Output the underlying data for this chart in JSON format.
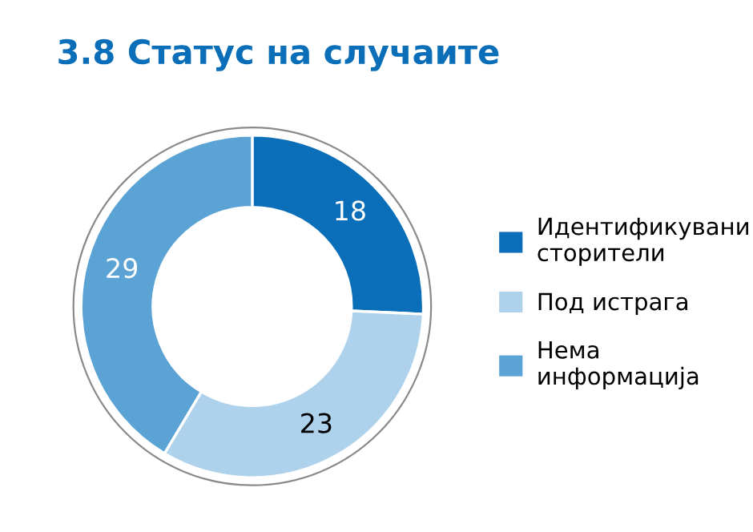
{
  "chart_data": {
    "type": "donut",
    "title": "3.8 Статус на случаите",
    "categories": [
      "Идентификувани\nсторители",
      "Под истрага",
      "Нема\nинформација"
    ],
    "values": [
      18,
      23,
      29
    ],
    "colors": [
      "#0a6eb8",
      "#aed2eb",
      "#5ba3d5"
    ],
    "data_labels": true,
    "legend": "right"
  }
}
